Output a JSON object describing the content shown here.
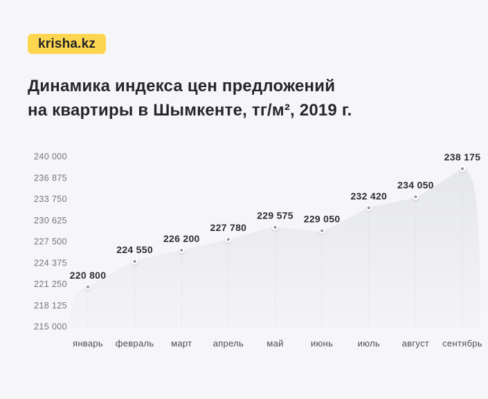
{
  "logo": {
    "text": "krisha.kz",
    "bg_color": "#FDD64F",
    "text_color": "#242428"
  },
  "title": {
    "line1": "Динамика индекса цен предложений",
    "line2": "на квартиры в Шымкенте, тг/м², 2019 г."
  },
  "chart_data": {
    "type": "area",
    "title": "Динамика индекса цен предложений на квартиры в Шымкенте, тг/м², 2019 г.",
    "categories": [
      "январь",
      "февраль",
      "март",
      "апрель",
      "май",
      "июнь",
      "июль",
      "август",
      "сентябрь"
    ],
    "values": [
      220800,
      224550,
      226200,
      227780,
      229575,
      229050,
      232420,
      234050,
      238175
    ],
    "point_labels": [
      "220 800",
      "224 550",
      "226 200",
      "227 780",
      "229 575",
      "229 050",
      "232 420",
      "234 050",
      "238 175"
    ],
    "y_ticks": [
      240000,
      236875,
      233750,
      230625,
      227500,
      224375,
      221250,
      218125,
      215000
    ],
    "y_tick_labels": [
      "240 000",
      "236 875",
      "233 750",
      "230 625",
      "227 500",
      "224 375",
      "221 250",
      "218 125",
      "215 000"
    ],
    "ylim": [
      215000,
      240000
    ],
    "xlabel": "",
    "ylabel": "",
    "legend": "none",
    "grid": "dotted-vertical-per-point",
    "colors": {
      "background": "#f6f6f8",
      "area_top": "#e6e7eb",
      "area_bottom": "#f4f4f7",
      "dot_center": "#95959d",
      "dot_ring": "#ffffff",
      "grid_dots": "#d5d6da",
      "point_label": "#2c2c33",
      "month_label": "#4c4c53",
      "tick_label": "#73737c"
    }
  }
}
